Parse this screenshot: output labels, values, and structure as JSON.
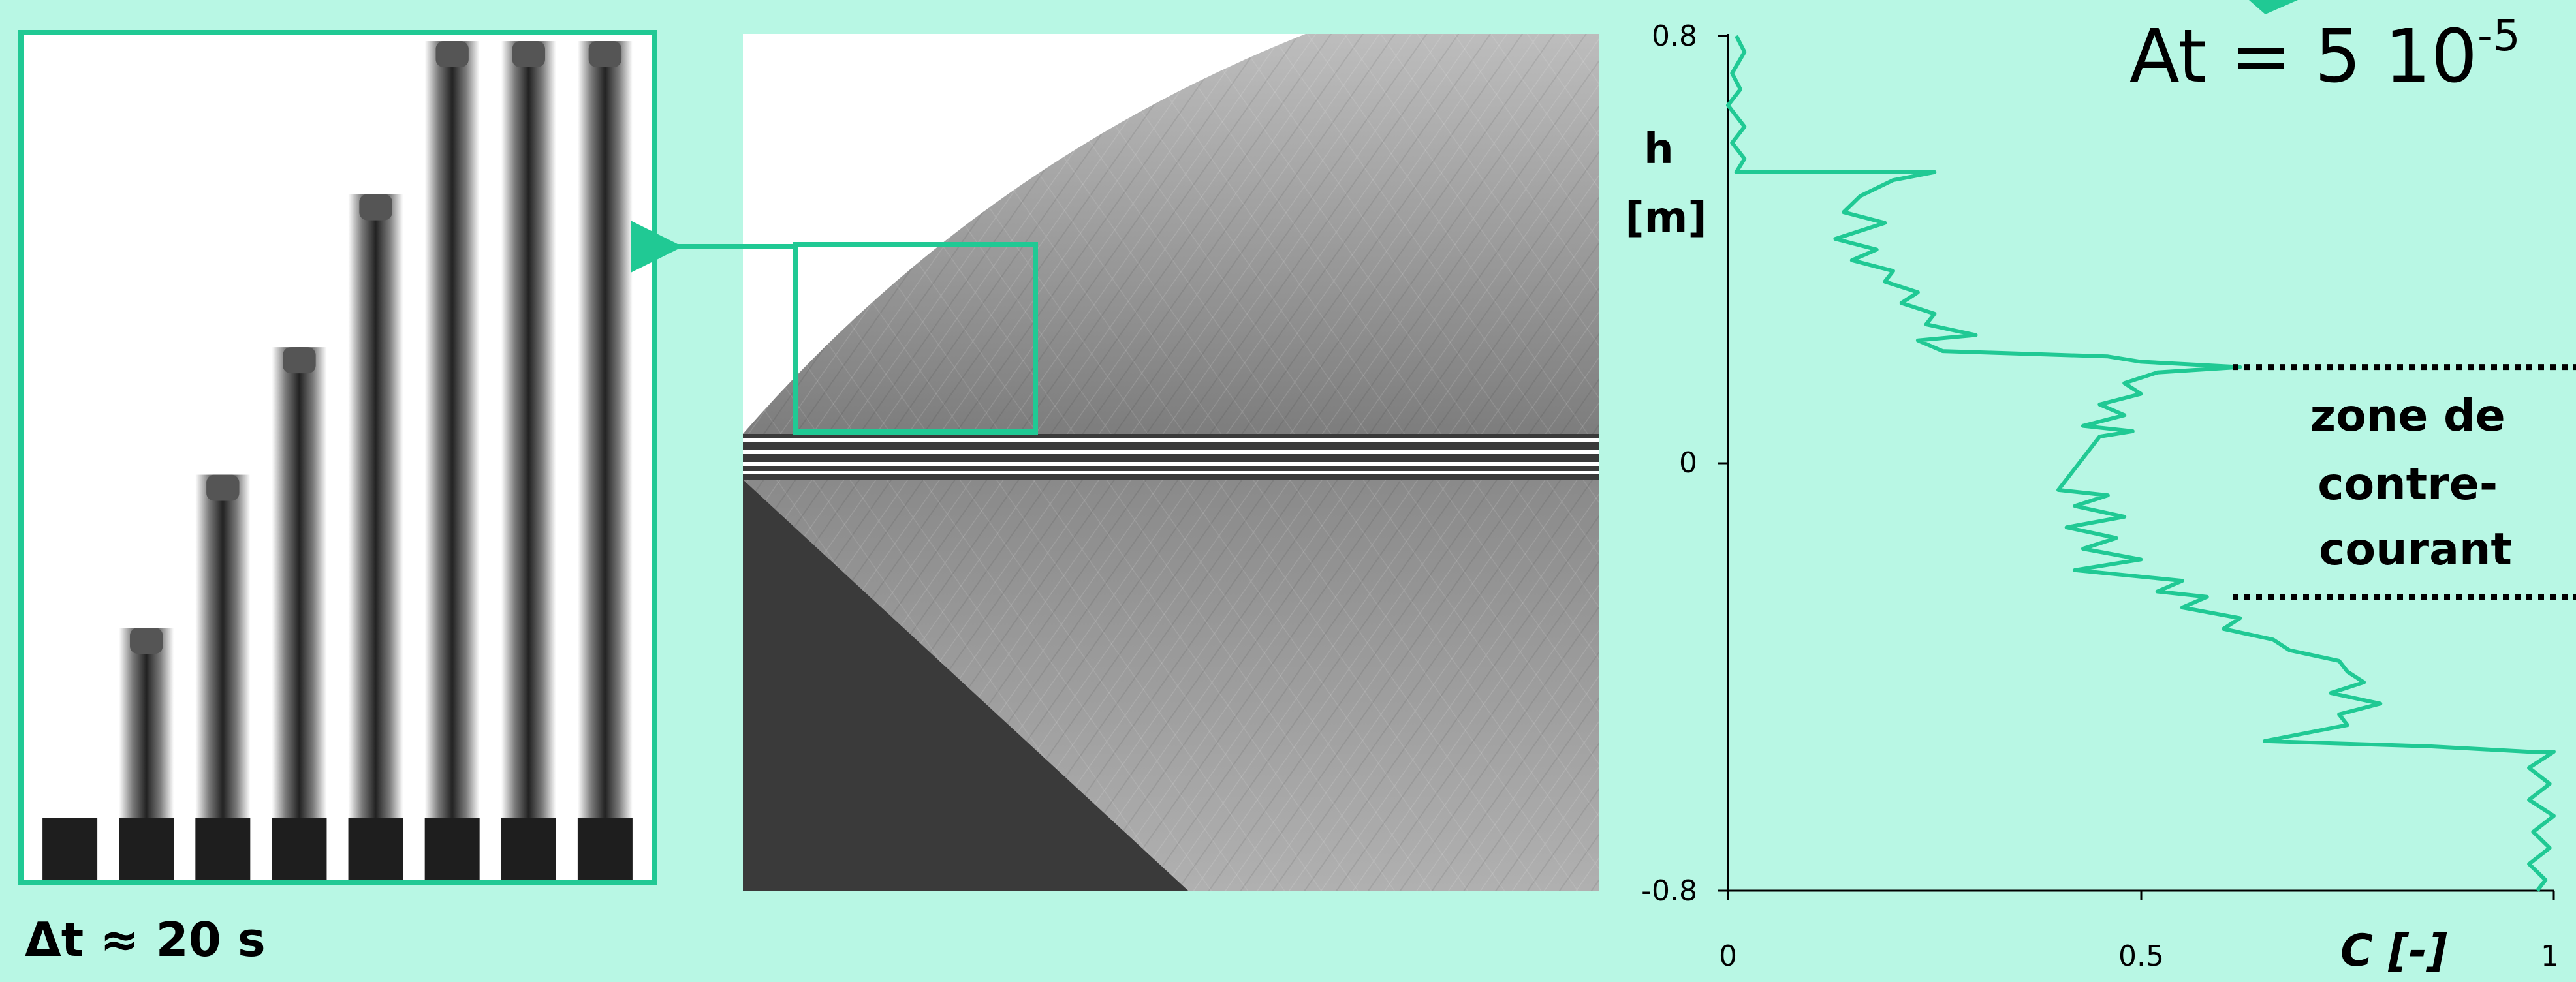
{
  "panel_left": {
    "caption_delta": "Δt",
    "caption_rest": " ≈ 20 s",
    "profile_tops": [
      0.96,
      0.7,
      0.52,
      0.37,
      0.19,
      0.01,
      0.01,
      0.01
    ]
  },
  "title": {
    "prefix": "At = 5 10",
    "exponent": "-5"
  },
  "annotation": {
    "lines": [
      "zone de",
      "contre-",
      "courant"
    ]
  },
  "colors": {
    "accent": "#20c994",
    "background": "#b8f7e4",
    "dark": "#3a3a3a"
  },
  "chart_data": {
    "type": "line",
    "title": "At = 5 10-5",
    "xlabel": "C [-]",
    "ylabel": "h [m]",
    "xlim": [
      0,
      1
    ],
    "ylim": [
      -0.8,
      0.8
    ],
    "x_ticks": [
      "0",
      "0.5",
      "1"
    ],
    "y_ticks": [
      "0.8",
      "0",
      "-0.8"
    ],
    "grid": false,
    "series": [
      {
        "color": "#20c994",
        "points": [
          {
            "h": 0.8,
            "c": 0.01
          },
          {
            "h": 0.77,
            "c": 0.02
          },
          {
            "h": 0.73,
            "c": 0.005
          },
          {
            "h": 0.7,
            "c": 0.015
          },
          {
            "h": 0.67,
            "c": 0.0
          },
          {
            "h": 0.63,
            "c": 0.02
          },
          {
            "h": 0.6,
            "c": 0.005
          },
          {
            "h": 0.57,
            "c": 0.02
          },
          {
            "h": 0.545,
            "c": 0.01
          },
          {
            "h": 0.545,
            "c": 0.25
          },
          {
            "h": 0.53,
            "c": 0.2
          },
          {
            "h": 0.5,
            "c": 0.16
          },
          {
            "h": 0.47,
            "c": 0.14
          },
          {
            "h": 0.45,
            "c": 0.19
          },
          {
            "h": 0.42,
            "c": 0.13
          },
          {
            "h": 0.4,
            "c": 0.18
          },
          {
            "h": 0.38,
            "c": 0.15
          },
          {
            "h": 0.36,
            "c": 0.2
          },
          {
            "h": 0.34,
            "c": 0.19
          },
          {
            "h": 0.32,
            "c": 0.23
          },
          {
            "h": 0.3,
            "c": 0.21
          },
          {
            "h": 0.28,
            "c": 0.25
          },
          {
            "h": 0.26,
            "c": 0.24
          },
          {
            "h": 0.24,
            "c": 0.3
          },
          {
            "h": 0.23,
            "c": 0.23
          },
          {
            "h": 0.21,
            "c": 0.26
          },
          {
            "h": 0.2,
            "c": 0.46
          },
          {
            "h": 0.19,
            "c": 0.5
          },
          {
            "h": 0.18,
            "c": 0.62
          },
          {
            "h": 0.17,
            "c": 0.52
          },
          {
            "h": 0.15,
            "c": 0.48
          },
          {
            "h": 0.13,
            "c": 0.5
          },
          {
            "h": 0.11,
            "c": 0.45
          },
          {
            "h": 0.09,
            "c": 0.48
          },
          {
            "h": 0.07,
            "c": 0.43
          },
          {
            "h": 0.06,
            "c": 0.49
          },
          {
            "h": 0.05,
            "c": 0.45
          },
          {
            "h": -0.05,
            "c": 0.4
          },
          {
            "h": -0.06,
            "c": 0.46
          },
          {
            "h": -0.08,
            "c": 0.42
          },
          {
            "h": -0.1,
            "c": 0.48
          },
          {
            "h": -0.12,
            "c": 0.41
          },
          {
            "h": -0.14,
            "c": 0.47
          },
          {
            "h": -0.16,
            "c": 0.43
          },
          {
            "h": -0.18,
            "c": 0.5
          },
          {
            "h": -0.2,
            "c": 0.42
          },
          {
            "h": -0.22,
            "c": 0.55
          },
          {
            "h": -0.24,
            "c": 0.52
          },
          {
            "h": -0.25,
            "c": 0.58
          },
          {
            "h": -0.27,
            "c": 0.55
          },
          {
            "h": -0.29,
            "c": 0.62
          },
          {
            "h": -0.31,
            "c": 0.6
          },
          {
            "h": -0.33,
            "c": 0.66
          },
          {
            "h": -0.35,
            "c": 0.68
          },
          {
            "h": -0.37,
            "c": 0.74
          },
          {
            "h": -0.39,
            "c": 0.75
          },
          {
            "h": -0.41,
            "c": 0.77
          },
          {
            "h": -0.43,
            "c": 0.73
          },
          {
            "h": -0.45,
            "c": 0.79
          },
          {
            "h": -0.47,
            "c": 0.74
          },
          {
            "h": -0.49,
            "c": 0.75
          },
          {
            "h": -0.52,
            "c": 0.65
          },
          {
            "h": -0.53,
            "c": 0.85
          },
          {
            "h": -0.54,
            "c": 0.97
          },
          {
            "h": -0.54,
            "c": 1.0
          },
          {
            "h": -0.57,
            "c": 0.97
          },
          {
            "h": -0.6,
            "c": 0.995
          },
          {
            "h": -0.63,
            "c": 0.97
          },
          {
            "h": -0.66,
            "c": 1.0
          },
          {
            "h": -0.69,
            "c": 0.975
          },
          {
            "h": -0.72,
            "c": 0.995
          },
          {
            "h": -0.75,
            "c": 0.97
          },
          {
            "h": -0.78,
            "c": 0.99
          },
          {
            "h": -0.8,
            "c": 0.98
          }
        ]
      }
    ],
    "reference_lines": [
      {
        "h": 0.18,
        "style": "dotted"
      },
      {
        "h": -0.25,
        "style": "dotted"
      }
    ]
  }
}
